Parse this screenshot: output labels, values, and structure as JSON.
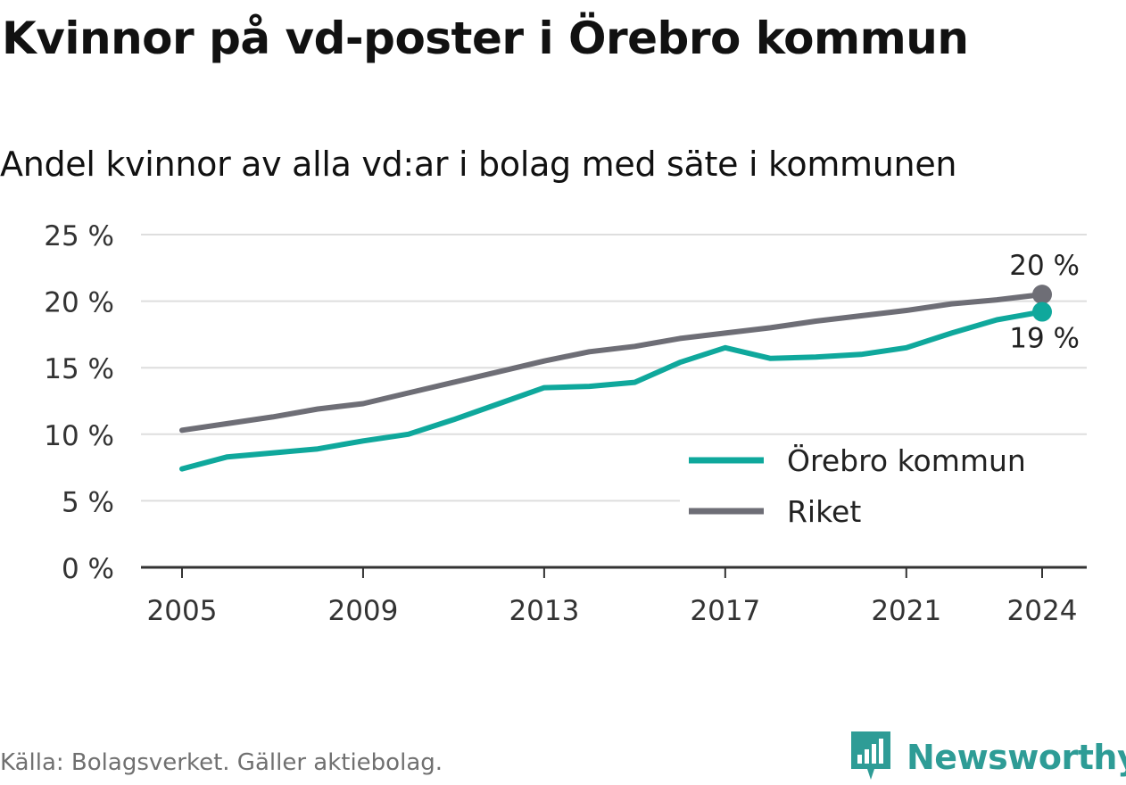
{
  "header": {
    "title": "Kvinnor på vd-poster i Örebro kommun",
    "subtitle": "Andel kvinnor av alla vd:ar i bolag med säte i kommunen"
  },
  "footer": {
    "source": "Källa: Bolagsverket. Gäller aktiebolag.",
    "brand": "Newsworthy",
    "brand_icon": "bar-chart-icon",
    "brand_color": "#2e9c96"
  },
  "chart_data": {
    "type": "line",
    "title": "Kvinnor på vd-poster i Örebro kommun",
    "subtitle": "Andel kvinnor av alla vd:ar i bolag med säte i kommunen",
    "xlabel": "",
    "ylabel": "",
    "x": [
      2005,
      2006,
      2007,
      2008,
      2009,
      2010,
      2011,
      2012,
      2013,
      2014,
      2015,
      2016,
      2017,
      2018,
      2019,
      2020,
      2021,
      2022,
      2023,
      2024
    ],
    "x_ticks": [
      2005,
      2009,
      2013,
      2017,
      2021,
      2024
    ],
    "x_tick_labels": [
      "2005",
      "2009",
      "2013",
      "2017",
      "2021",
      "2024"
    ],
    "ylim": [
      0,
      25
    ],
    "y_ticks": [
      0,
      5,
      10,
      15,
      20,
      25
    ],
    "y_tick_labels": [
      "0 %",
      "5 %",
      "10 %",
      "15 %",
      "20 %",
      "25 %"
    ],
    "grid": "horizontal",
    "legend_position": "bottom-right",
    "series": [
      {
        "name": "Örebro kommun",
        "color": "#0fa89c",
        "values": [
          7.4,
          8.3,
          8.6,
          8.9,
          9.5,
          10.0,
          11.1,
          12.3,
          13.5,
          13.6,
          13.9,
          15.4,
          16.5,
          15.7,
          15.8,
          16.0,
          16.5,
          17.6,
          18.6,
          19.2
        ],
        "end_label": "19 %"
      },
      {
        "name": "Riket",
        "color": "#6e6e76",
        "values": [
          10.3,
          10.8,
          11.3,
          11.9,
          12.3,
          13.1,
          13.9,
          14.7,
          15.5,
          16.2,
          16.6,
          17.2,
          17.6,
          18.0,
          18.5,
          18.9,
          19.3,
          19.8,
          20.1,
          20.5
        ],
        "end_label": "20 %"
      }
    ]
  }
}
